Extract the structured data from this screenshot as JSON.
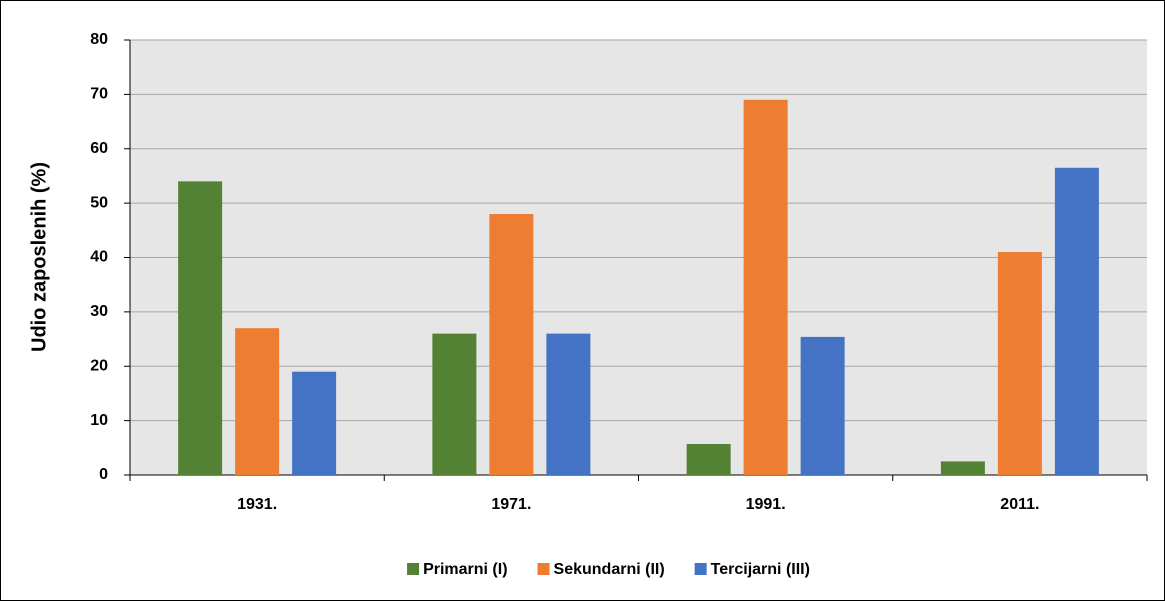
{
  "chart_data": {
    "type": "bar",
    "ylabel": "Udio zaposlenih (%)",
    "categories": [
      "1931.",
      "1971.",
      "1991.",
      "2011."
    ],
    "series": [
      {
        "name": "Primarni (I)",
        "color": "#548235",
        "values": [
          54,
          26,
          5.7,
          2.5
        ]
      },
      {
        "name": "Sekundarni (II)",
        "color": "#ed7d31",
        "values": [
          27,
          48,
          69,
          41
        ]
      },
      {
        "name": "Tercijarni (III)",
        "color": "#4472c4",
        "values": [
          19,
          26,
          25.4,
          56.5
        ]
      }
    ],
    "ylim": [
      0,
      80
    ],
    "yticks": [
      0,
      10,
      20,
      30,
      40,
      50,
      60,
      70,
      80
    ],
    "grid": true,
    "legend": "bottom"
  }
}
